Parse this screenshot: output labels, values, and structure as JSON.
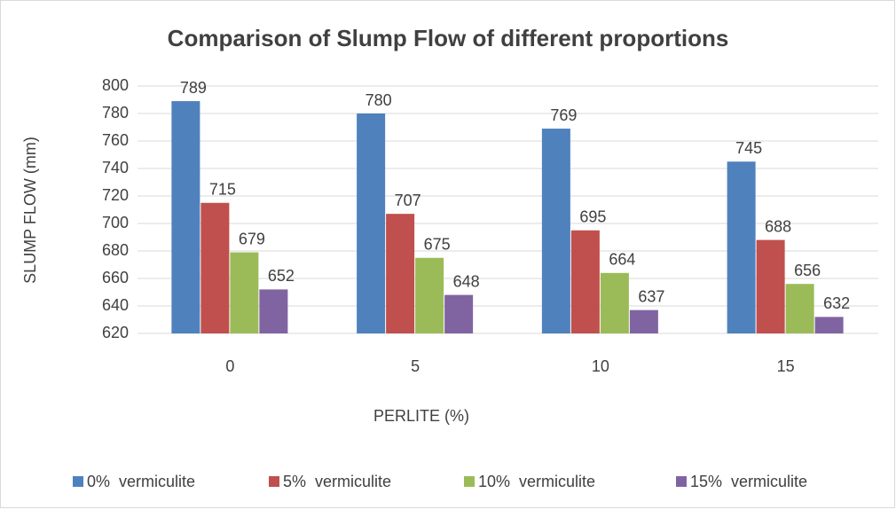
{
  "chart_data": {
    "type": "bar",
    "title": "Comparison of Slump Flow of different proportions",
    "x_label": "PERLITE (%)",
    "y_label": "SLUMP FLOW (mm)",
    "categories": [
      "0",
      "5",
      "10",
      "15"
    ],
    "series": [
      {
        "name": "0%  vermiculite",
        "color": "#4f81bd",
        "values": [
          789,
          780,
          769,
          745
        ]
      },
      {
        "name": "5%  vermiculite",
        "color": "#c0504d",
        "values": [
          715,
          707,
          695,
          688
        ]
      },
      {
        "name": "10%  vermiculite",
        "color": "#9bbb59",
        "values": [
          679,
          675,
          664,
          656
        ]
      },
      {
        "name": "15%  vermiculite",
        "color": "#8064a2",
        "values": [
          652,
          648,
          637,
          632
        ]
      }
    ],
    "ylim": [
      620,
      800
    ],
    "yticks": [
      620,
      640,
      660,
      680,
      700,
      720,
      740,
      760,
      780,
      800
    ],
    "grid": true,
    "legend": "bottom"
  }
}
